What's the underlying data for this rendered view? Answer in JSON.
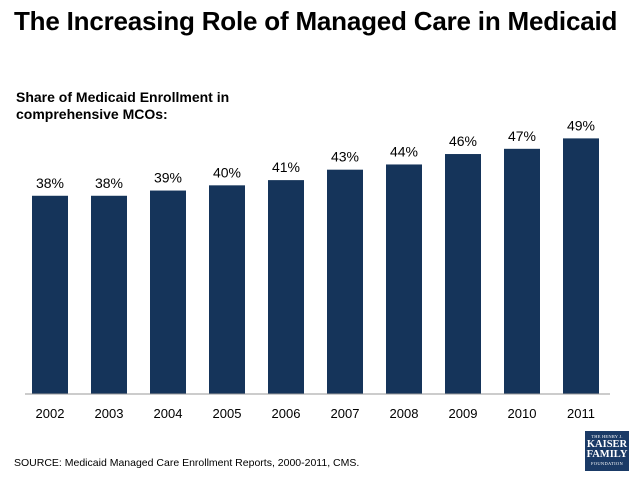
{
  "page": {
    "title": "The Increasing Role of Managed Care in Medicaid",
    "subtitle": "Share of Medicaid Enrollment in comprehensive MCOs:",
    "source": "SOURCE: Medicaid Managed Care Enrollment Reports, 2000-2011, CMS.",
    "logo": {
      "line1": "THE HENRY J.",
      "line2": "KAISER",
      "line3": "FAMILY",
      "line4": "FOUNDATION"
    }
  },
  "chart_data": {
    "type": "bar",
    "title": "Share of Medicaid Enrollment in comprehensive MCOs:",
    "categories": [
      "2002",
      "2003",
      "2004",
      "2005",
      "2006",
      "2007",
      "2008",
      "2009",
      "2010",
      "2011"
    ],
    "values": [
      38,
      38,
      39,
      40,
      41,
      43,
      44,
      46,
      47,
      49
    ],
    "data_labels": [
      "38%",
      "38%",
      "39%",
      "40%",
      "41%",
      "43%",
      "44%",
      "46%",
      "47%",
      "49%"
    ],
    "ylim": [
      0,
      60
    ],
    "grid": false,
    "legend": "none",
    "bar_color": "#15345a"
  }
}
